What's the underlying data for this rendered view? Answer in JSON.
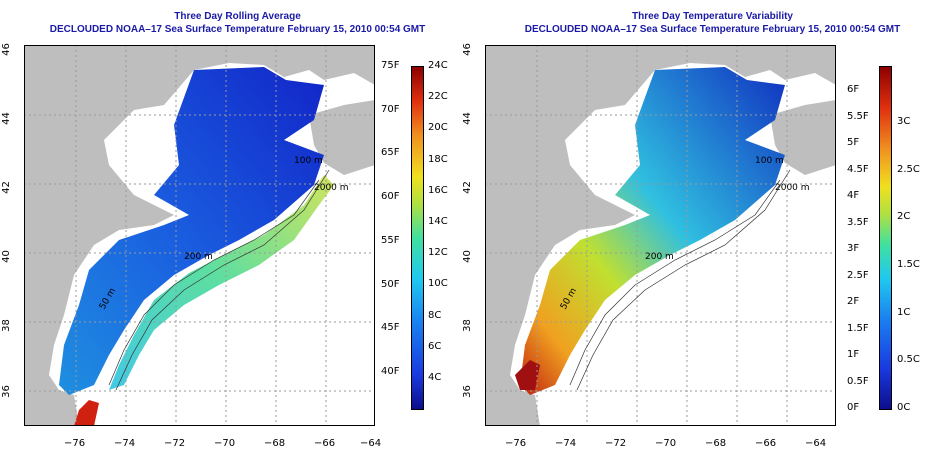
{
  "panels": [
    {
      "id": "rolling-average",
      "title_line1": "Three Day Rolling Average",
      "title_line2": "DECLOUDED NOAA–17 Sea Surface Temperature February 15, 2010 00:54 GMT",
      "colorbar_f_labels": [
        "75F",
        "70F",
        "65F",
        "60F",
        "55F",
        "50F",
        "45F",
        "40F"
      ],
      "colorbar_c_labels": [
        "24C",
        "22C",
        "20C",
        "18C",
        "16C",
        "14C",
        "12C",
        "10C",
        "8C",
        "6C",
        "4C"
      ],
      "contour_labels": [
        "200 m",
        "2000 m",
        "100 m",
        "50 m"
      ]
    },
    {
      "id": "temperature-variability",
      "title_line1": "Three Day Temperature Variability",
      "title_line2": "DECLOUDED NOAA–17 Sea Surface Temperature February 15, 2010 00:54 GMT",
      "colorbar_f_labels": [
        "6F",
        "5.5F",
        "5F",
        "4.5F",
        "4F",
        "3.5F",
        "3F",
        "2.5F",
        "2F",
        "1.5F",
        "1F",
        "0.5F",
        "0F"
      ],
      "colorbar_c_labels": [
        "3C",
        "2.5C",
        "2C",
        "1.5C",
        "1C",
        "0.5C",
        "0C"
      ],
      "contour_labels": [
        "200 m",
        "2000 m",
        "100 m",
        "50 m"
      ]
    }
  ],
  "axes": {
    "lat_ticks": [
      "46",
      "44",
      "42",
      "40",
      "38",
      "36"
    ],
    "lon_ticks": [
      "−76",
      "−74",
      "−72",
      "−70",
      "−68",
      "−66",
      "−64"
    ]
  },
  "colors": {
    "title": "#1a1aa6",
    "land": "#bebebe",
    "grid": "#9a9a9a"
  }
}
